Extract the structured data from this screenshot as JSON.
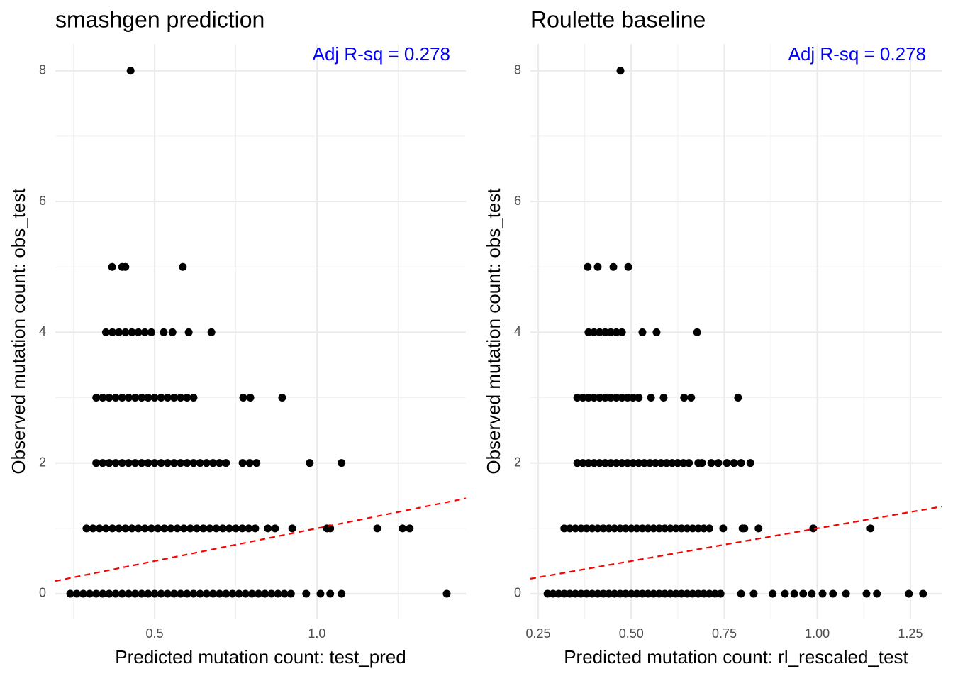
{
  "chart_data": [
    {
      "type": "scatter",
      "title": "smashgen prediction",
      "xlabel": "Predicted mutation count: test_pred",
      "ylabel": "Observed mutation count: obs_test",
      "annotation": "Adj R-sq = 0.278",
      "annotation_color": "#0000ff",
      "xlim": [
        0.194,
        1.459
      ],
      "ylim": [
        -0.38,
        8.41
      ],
      "xticks": [
        0.5,
        {
          "value": 1,
          "label": "1.0"
        }
      ],
      "yticks": [
        0,
        2,
        4,
        6,
        8
      ],
      "grid": true,
      "minor_grid": true,
      "reference_line": {
        "slope": 1,
        "intercept": 0,
        "color": "#ff0000"
      },
      "series": [
        {
          "name": null,
          "color": "#000000",
          "x": [
            0.24,
            0.26,
            0.28,
            0.3,
            0.32,
            0.34,
            0.36,
            0.38,
            0.4,
            0.42,
            0.44,
            0.46,
            0.48,
            0.5,
            0.52,
            0.54,
            0.56,
            0.58,
            0.6,
            0.62,
            0.64,
            0.66,
            0.68,
            0.7,
            0.72,
            0.74,
            0.76,
            0.78,
            0.8,
            0.82,
            0.84,
            0.86,
            0.88,
            0.9,
            0.92,
            0.967,
            1.011,
            1.041,
            1.076,
            1.4,
            0.29,
            0.31,
            0.33,
            0.35,
            0.37,
            0.39,
            0.41,
            0.43,
            0.45,
            0.47,
            0.49,
            0.51,
            0.53,
            0.55,
            0.57,
            0.59,
            0.61,
            0.63,
            0.65,
            0.67,
            0.69,
            0.71,
            0.73,
            0.75,
            0.77,
            0.79,
            0.81,
            0.849,
            0.871,
            0.924,
            1.031,
            1.041,
            1.186,
            1.264,
            1.286,
            0.32,
            0.34,
            0.36,
            0.38,
            0.4,
            0.42,
            0.44,
            0.46,
            0.48,
            0.5,
            0.52,
            0.54,
            0.56,
            0.58,
            0.6,
            0.62,
            0.64,
            0.66,
            0.68,
            0.7,
            0.72,
            0.771,
            0.793,
            0.814,
            0.978,
            1.076,
            0.32,
            0.34,
            0.36,
            0.38,
            0.4,
            0.42,
            0.44,
            0.46,
            0.48,
            0.5,
            0.52,
            0.54,
            0.56,
            0.58,
            0.6,
            0.62,
            0.773,
            0.795,
            0.893,
            0.35,
            0.37,
            0.39,
            0.41,
            0.43,
            0.45,
            0.47,
            0.49,
            0.528,
            0.555,
            0.605,
            0.675,
            0.369,
            0.4,
            0.41,
            0.587,
            0.426
          ],
          "values": [
            0,
            0,
            0,
            0,
            0,
            0,
            0,
            0,
            0,
            0,
            0,
            0,
            0,
            0,
            0,
            0,
            0,
            0,
            0,
            0,
            0,
            0,
            0,
            0,
            0,
            0,
            0,
            0,
            0,
            0,
            0,
            0,
            0,
            0,
            0,
            0,
            0,
            0,
            0,
            0,
            1,
            1,
            1,
            1,
            1,
            1,
            1,
            1,
            1,
            1,
            1,
            1,
            1,
            1,
            1,
            1,
            1,
            1,
            1,
            1,
            1,
            1,
            1,
            1,
            1,
            1,
            1,
            1,
            1,
            1,
            1,
            1,
            1,
            1,
            1,
            2,
            2,
            2,
            2,
            2,
            2,
            2,
            2,
            2,
            2,
            2,
            2,
            2,
            2,
            2,
            2,
            2,
            2,
            2,
            2,
            2,
            2,
            2,
            2,
            2,
            2,
            3,
            3,
            3,
            3,
            3,
            3,
            3,
            3,
            3,
            3,
            3,
            3,
            3,
            3,
            3,
            3,
            3,
            3,
            3,
            4,
            4,
            4,
            4,
            4,
            4,
            4,
            4,
            4,
            4,
            4,
            4,
            5,
            5,
            5,
            5,
            8
          ]
        }
      ]
    },
    {
      "type": "scatter",
      "title": "Roulette baseline",
      "xlabel": "Predicted mutation count: rl_rescaled_test",
      "ylabel": "Observed mutation count: obs_test",
      "annotation": "Adj R-sq = 0.278",
      "annotation_color": "#0000ff",
      "xlim": [
        0.229,
        1.334
      ],
      "ylim": [
        -0.38,
        8.41
      ],
      "xticks": [
        0.25,
        {
          "value": 0.5,
          "label": "0.50"
        },
        0.75,
        {
          "value": 1,
          "label": "1.00"
        },
        1.25
      ],
      "yticks": [
        0,
        2,
        4,
        6,
        8
      ],
      "grid": true,
      "minor_grid": true,
      "reference_line": {
        "slope": 1,
        "intercept": 0,
        "color": "#ff0000"
      },
      "series": [
        {
          "name": null,
          "color": "#000000",
          "x": [
            0.275,
            0.29,
            0.305,
            0.32,
            0.335,
            0.35,
            0.365,
            0.38,
            0.395,
            0.41,
            0.425,
            0.44,
            0.455,
            0.47,
            0.485,
            0.5,
            0.515,
            0.53,
            0.545,
            0.56,
            0.575,
            0.59,
            0.605,
            0.62,
            0.635,
            0.65,
            0.665,
            0.68,
            0.695,
            0.71,
            0.725,
            0.74,
            0.795,
            0.829,
            0.88,
            0.913,
            0.938,
            0.962,
            0.985,
            1.014,
            1.042,
            1.077,
            1.132,
            1.16,
            1.246,
            1.284,
            0.32,
            0.335,
            0.35,
            0.365,
            0.38,
            0.395,
            0.41,
            0.425,
            0.44,
            0.455,
            0.47,
            0.485,
            0.5,
            0.515,
            0.53,
            0.545,
            0.56,
            0.575,
            0.59,
            0.605,
            0.62,
            0.635,
            0.65,
            0.665,
            0.68,
            0.695,
            0.71,
            0.747,
            0.799,
            0.804,
            0.842,
            0.989,
            1.143,
            0.355,
            0.37,
            0.385,
            0.4,
            0.415,
            0.43,
            0.445,
            0.46,
            0.475,
            0.49,
            0.505,
            0.52,
            0.535,
            0.55,
            0.565,
            0.58,
            0.595,
            0.61,
            0.625,
            0.64,
            0.655,
            0.68,
            0.69,
            0.715,
            0.734,
            0.757,
            0.776,
            0.795,
            0.82,
            0.355,
            0.37,
            0.385,
            0.4,
            0.415,
            0.43,
            0.445,
            0.46,
            0.475,
            0.49,
            0.505,
            0.52,
            0.553,
            0.587,
            0.642,
            0.661,
            0.787,
            0.385,
            0.4,
            0.415,
            0.43,
            0.445,
            0.46,
            0.475,
            0.53,
            0.568,
            0.677,
            0.383,
            0.41,
            0.452,
            0.492,
            0.471
          ],
          "values": [
            0,
            0,
            0,
            0,
            0,
            0,
            0,
            0,
            0,
            0,
            0,
            0,
            0,
            0,
            0,
            0,
            0,
            0,
            0,
            0,
            0,
            0,
            0,
            0,
            0,
            0,
            0,
            0,
            0,
            0,
            0,
            0,
            0,
            0,
            0,
            0,
            0,
            0,
            0,
            0,
            0,
            0,
            0,
            0,
            0,
            0,
            1,
            1,
            1,
            1,
            1,
            1,
            1,
            1,
            1,
            1,
            1,
            1,
            1,
            1,
            1,
            1,
            1,
            1,
            1,
            1,
            1,
            1,
            1,
            1,
            1,
            1,
            1,
            1,
            1,
            1,
            1,
            1,
            1,
            2,
            2,
            2,
            2,
            2,
            2,
            2,
            2,
            2,
            2,
            2,
            2,
            2,
            2,
            2,
            2,
            2,
            2,
            2,
            2,
            2,
            2,
            2,
            2,
            2,
            2,
            2,
            2,
            2,
            3,
            3,
            3,
            3,
            3,
            3,
            3,
            3,
            3,
            3,
            3,
            3,
            3,
            3,
            3,
            3,
            3,
            4,
            4,
            4,
            4,
            4,
            4,
            4,
            4,
            4,
            4,
            5,
            5,
            5,
            5,
            8
          ]
        }
      ]
    }
  ]
}
